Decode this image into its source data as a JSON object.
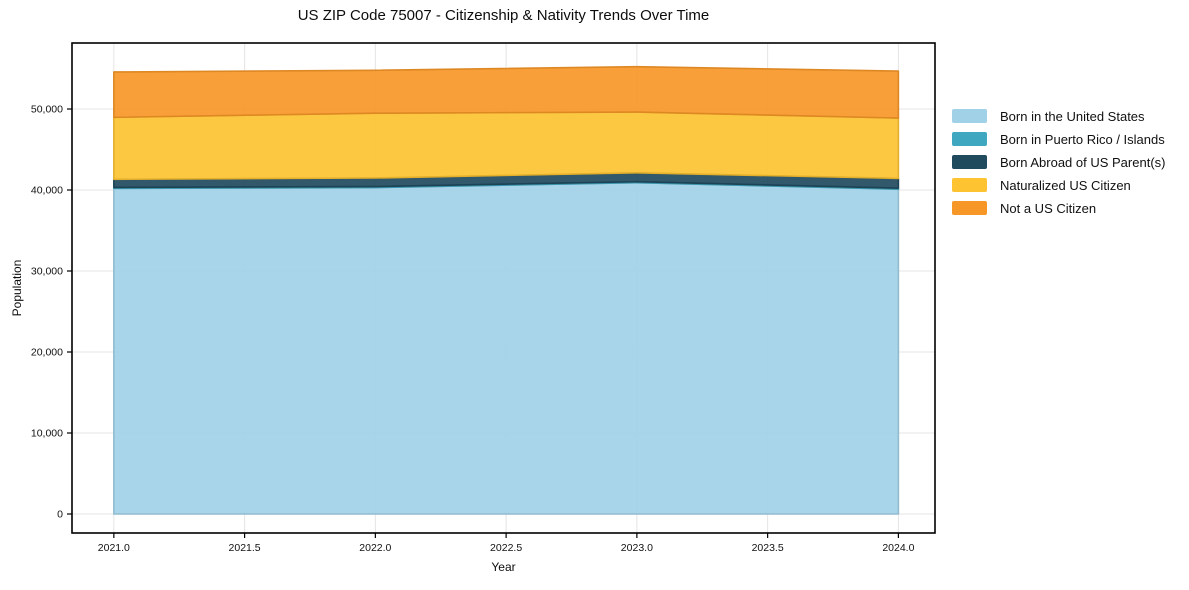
{
  "figure": {
    "title": "US ZIP Code 75007 - Citizenship & Nativity Trends Over Time",
    "xlabel": "Year",
    "ylabel": "Population"
  },
  "chart_data": {
    "type": "area",
    "stacked": true,
    "title": "US ZIP Code 75007 - Citizenship & Nativity Trends Over Time",
    "xlabel": "Year",
    "ylabel": "Population",
    "x": [
      2021,
      2022,
      2023,
      2024
    ],
    "series": [
      {
        "name": "Born in the United States",
        "color": "#a1d1e7",
        "values": [
          40200,
          40300,
          40900,
          40100
        ]
      },
      {
        "name": "Born in Puerto Rico / Islands",
        "color": "#3fa7c0",
        "values": [
          120,
          130,
          120,
          130
        ]
      },
      {
        "name": "Born Abroad of US Parent(s)",
        "color": "#204a5e",
        "values": [
          1000,
          1050,
          1100,
          1200
        ]
      },
      {
        "name": "Naturalized US Citizen",
        "color": "#fdc331",
        "values": [
          7650,
          8000,
          7500,
          7450
        ]
      },
      {
        "name": "Not a US Citizen",
        "color": "#f79728",
        "values": [
          5600,
          5300,
          5600,
          5800
        ]
      }
    ],
    "xlim": [
      2020.84,
      2024.14
    ],
    "ylim": [
      -2346,
      58148
    ],
    "xticks": {
      "values": [
        2021.0,
        2021.5,
        2022.0,
        2022.5,
        2023.0,
        2023.5,
        2024.0
      ],
      "labels": [
        "2021.0",
        "2021.5",
        "2022.0",
        "2022.5",
        "2023.0",
        "2023.5",
        "2024.0"
      ]
    },
    "yticks": {
      "values": [
        0,
        10000,
        20000,
        30000,
        40000,
        50000
      ],
      "labels": [
        "0",
        "10,000",
        "20,000",
        "30,000",
        "40,000",
        "50,000"
      ]
    },
    "grid": true,
    "grid_color": "#e4e4e4",
    "frame_color": "#000000",
    "legend_position": "right-outside"
  }
}
